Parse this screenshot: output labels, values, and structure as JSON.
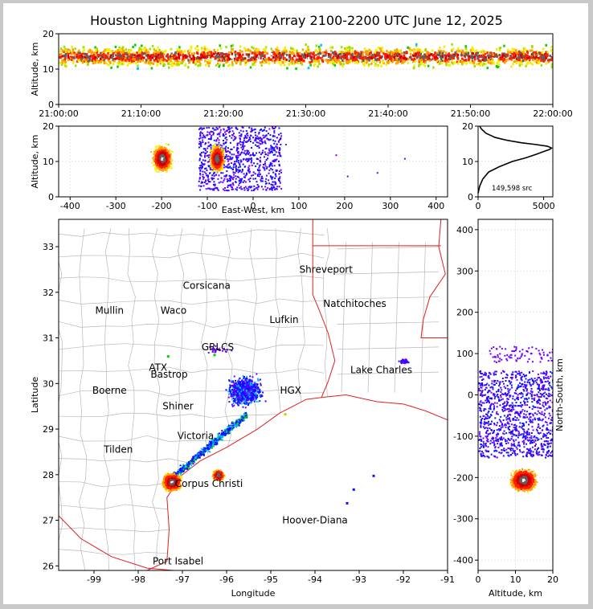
{
  "title": "Houston Lightning Mapping Array 2100-2200 UTC June 12, 2025",
  "colors": {
    "county": "#b8b8b8",
    "state": "#e02020",
    "coast": "#e02020",
    "grid": "#e6e6e6"
  },
  "chart_data": [
    {
      "type": "heatmap",
      "panel": "time-altitude",
      "ylabel": "Altitude, km",
      "ylim": [
        0,
        20
      ],
      "yticks": [
        0,
        10,
        20
      ],
      "xticks": [
        "21:00:00",
        "21:10:00",
        "21:20:00",
        "21:30:00",
        "21:40:00",
        "21:50:00",
        "22:00:00"
      ]
    },
    {
      "type": "heatmap",
      "panel": "east-west-altitude",
      "xlabel": "East-West, km",
      "ylabel": "Altitude, km",
      "xlim": [
        -425,
        425
      ],
      "ylim": [
        0,
        20
      ],
      "xticks": [
        -400,
        -300,
        -200,
        -100,
        0,
        100,
        200,
        300,
        400
      ],
      "yticks": [
        0,
        10,
        20
      ],
      "cores": [
        {
          "x": -200,
          "z": 11
        },
        {
          "x": -80,
          "z": 11
        }
      ]
    },
    {
      "type": "line",
      "panel": "altitude-histogram",
      "annotation": "149,598 src",
      "xlim": [
        0,
        5700
      ],
      "ylim": [
        0,
        20
      ],
      "xticks": [
        0,
        5000
      ],
      "yticks": [
        0,
        10,
        20
      ],
      "profile": [
        [
          0,
          1
        ],
        [
          120,
          3
        ],
        [
          350,
          5
        ],
        [
          800,
          7
        ],
        [
          1600,
          8.5
        ],
        [
          2600,
          10
        ],
        [
          3600,
          11
        ],
        [
          4400,
          12
        ],
        [
          5000,
          12.8
        ],
        [
          5450,
          13.4
        ],
        [
          5600,
          13.8
        ],
        [
          5300,
          14.3
        ],
        [
          4400,
          14.8
        ],
        [
          3300,
          15.3
        ],
        [
          2200,
          16
        ],
        [
          1300,
          16.8
        ],
        [
          600,
          18
        ],
        [
          250,
          19.2
        ],
        [
          120,
          20
        ]
      ]
    },
    {
      "type": "heatmap",
      "panel": "plan-view",
      "xlabel": "Longitude",
      "ylabel": "Latitude",
      "xlim": [
        -99.8,
        -91
      ],
      "ylim": [
        25.9,
        33.6
      ],
      "xticks": [
        -99,
        -98,
        -97,
        -96,
        -95,
        -94,
        -93,
        -92,
        -91
      ],
      "yticks": [
        26,
        27,
        28,
        29,
        30,
        31,
        32,
        33
      ],
      "cores": [
        {
          "lon": -97.25,
          "lat": 27.85
        },
        {
          "lon": -96.2,
          "lat": 28.0
        }
      ]
    },
    {
      "type": "heatmap",
      "panel": "north-south-altitude",
      "xlabel": "Altitude, km",
      "ylabel": "North-South, km",
      "xlim": [
        0,
        20
      ],
      "ylim": [
        -425,
        425
      ],
      "xticks": [
        0,
        10,
        20
      ],
      "yticks": [
        -400,
        -300,
        -200,
        -100,
        0,
        100,
        200,
        300,
        400
      ]
    }
  ],
  "cities": [
    {
      "name": "Shreveport",
      "lon": -93.75,
      "lat": 32.5,
      "color": "#000"
    },
    {
      "name": "Corsicana",
      "lon": -96.45,
      "lat": 32.15,
      "color": "#000"
    },
    {
      "name": "Natchitoches",
      "lon": -93.1,
      "lat": 31.75,
      "color": "#000"
    },
    {
      "name": "Mullin",
      "lon": -98.65,
      "lat": 31.6,
      "color": "#f08040"
    },
    {
      "name": "Waco",
      "lon": -97.2,
      "lat": 31.6,
      "color": "#000"
    },
    {
      "name": "Lufkin",
      "lon": -94.7,
      "lat": 31.4,
      "color": "#000"
    },
    {
      "name": "GRLCS",
      "lon": -96.2,
      "lat": 30.8,
      "color": "#ffffff"
    },
    {
      "name": "ATX",
      "lon": -97.55,
      "lat": 30.35,
      "color": "#f08040"
    },
    {
      "name": "Bastrop",
      "lon": -97.3,
      "lat": 30.2,
      "color": "#000"
    },
    {
      "name": "Lake Charles",
      "lon": -92.5,
      "lat": 30.3,
      "color": "#000"
    },
    {
      "name": "Boerne",
      "lon": -98.65,
      "lat": 29.85,
      "color": "#000"
    },
    {
      "name": "HGX",
      "lon": -94.55,
      "lat": 29.85,
      "color": "#e8a000"
    },
    {
      "name": "Shiner",
      "lon": -97.1,
      "lat": 29.5,
      "color": "#000"
    },
    {
      "name": "Victoria",
      "lon": -96.7,
      "lat": 28.85,
      "color": "#000"
    },
    {
      "name": "Tilden",
      "lon": -98.45,
      "lat": 28.55,
      "color": "#000"
    },
    {
      "name": "Corpus Christi",
      "lon": -96.4,
      "lat": 27.8,
      "color": "#000"
    },
    {
      "name": "Hoover-Diana",
      "lon": -94.0,
      "lat": 27.0,
      "color": "#1010d0"
    },
    {
      "name": "Port Isabel",
      "lon": -97.1,
      "lat": 26.1,
      "color": "#000"
    }
  ]
}
